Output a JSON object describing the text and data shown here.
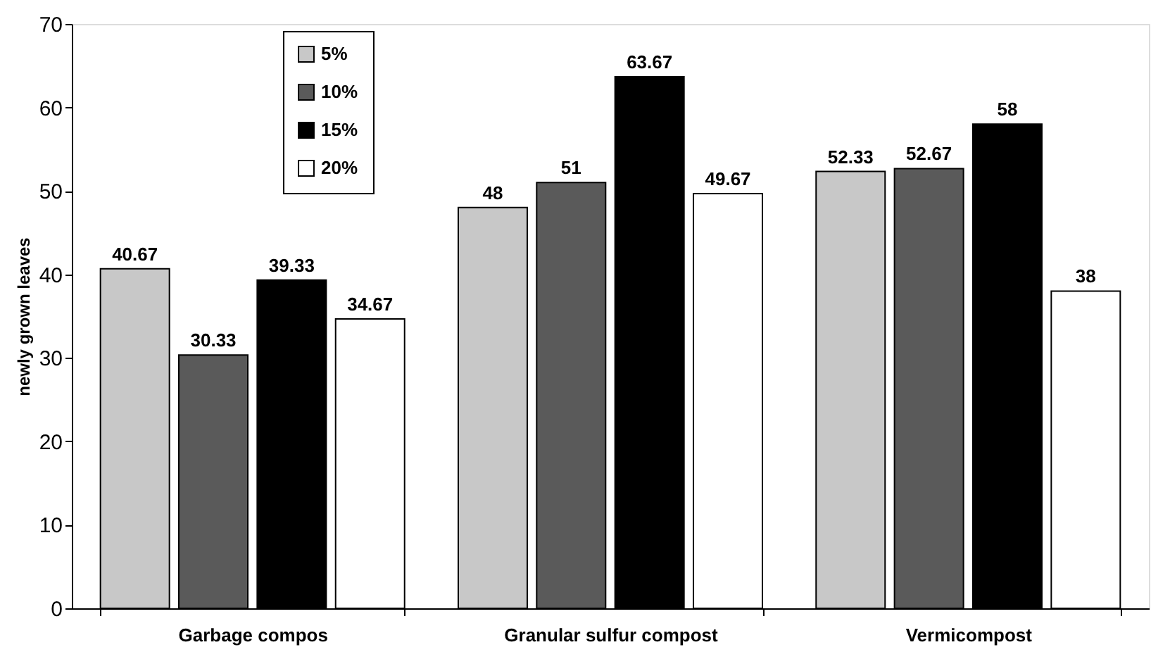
{
  "chart_data": {
    "type": "bar",
    "ylabel": "newly grown leaves",
    "categories": [
      "Garbage  compos",
      "Granular sulfur compost",
      "Vermicompost"
    ],
    "series": [
      {
        "name": "5%",
        "color": "#c8c8c8",
        "values": [
          40.67,
          48,
          52.33
        ]
      },
      {
        "name": "10%",
        "color": "#5a5a5a",
        "values": [
          30.33,
          51,
          52.67
        ]
      },
      {
        "name": "15%",
        "color": "#000000",
        "values": [
          39.33,
          63.67,
          58
        ]
      },
      {
        "name": "20%",
        "color": "#ffffff",
        "values": [
          34.67,
          49.67,
          38
        ]
      }
    ],
    "ylim": [
      0,
      70
    ],
    "yticks": [
      0,
      10,
      20,
      30,
      40,
      50,
      60,
      70
    ],
    "grid": false,
    "legend": "top left",
    "data_labels": true
  }
}
